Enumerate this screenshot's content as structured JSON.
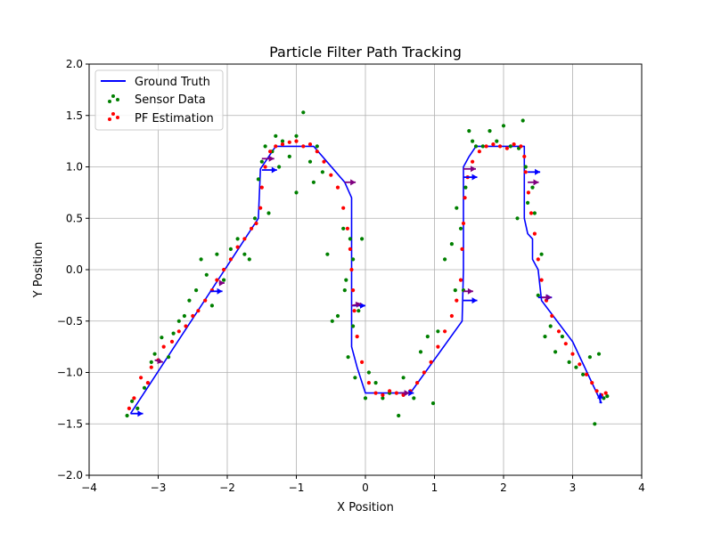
{
  "chart_data": {
    "type": "line",
    "title": "Particle Filter Path Tracking",
    "xlabel": "X Position",
    "ylabel": "Y Position",
    "xlim": [
      -4,
      4
    ],
    "ylim": [
      -2,
      2
    ],
    "xticks": [
      -4,
      -3,
      -2,
      -1,
      0,
      1,
      2,
      3,
      4
    ],
    "yticks": [
      -2.0,
      -1.5,
      -1.0,
      -0.5,
      0.0,
      0.5,
      1.0,
      1.5,
      2.0
    ],
    "xtick_labels": [
      "−4",
      "−3",
      "−2",
      "−1",
      "0",
      "1",
      "2",
      "3",
      "4"
    ],
    "ytick_labels": [
      "−2.0",
      "−1.5",
      "−1.0",
      "−0.5",
      "0.0",
      "0.5",
      "1.0",
      "1.5",
      "2.0"
    ],
    "grid": true,
    "legend_position": "top-left",
    "legend": [
      "Ground Truth",
      "Sensor Data",
      "PF Estimation"
    ],
    "colors": {
      "ground_truth": "#0000ff",
      "sensor": "#008000",
      "estimation": "#ff0000",
      "heading_blue": "#0000ff",
      "heading_purple": "#800080",
      "grid": "#b0b0b0"
    },
    "ground_truth": {
      "x": [
        -3.4,
        -1.55,
        -1.52,
        -1.3,
        -0.75,
        -0.3,
        -0.2,
        -0.2,
        -0.2,
        -0.12,
        0.0,
        0.65,
        1.4,
        1.42,
        1.42,
        1.5,
        1.6,
        2.3,
        2.3,
        2.3,
        2.35,
        2.42,
        2.42,
        2.5,
        2.55,
        3.0,
        3.42
      ],
      "y": [
        -1.4,
        0.5,
        0.98,
        1.2,
        1.2,
        0.85,
        0.7,
        0.0,
        -0.75,
        -0.95,
        -1.2,
        -1.2,
        -0.5,
        0.0,
        1.0,
        1.1,
        1.2,
        1.2,
        1.1,
        0.5,
        0.35,
        0.3,
        0.1,
        0.0,
        -0.3,
        -0.7,
        -1.3
      ]
    },
    "sensor_data": {
      "x": [
        -3.45,
        -3.38,
        -3.3,
        -3.2,
        -3.1,
        -3.05,
        -2.95,
        -2.85,
        -2.78,
        -2.7,
        -2.62,
        -2.55,
        -2.45,
        -2.38,
        -2.3,
        -2.22,
        -2.15,
        -2.05,
        -1.95,
        -1.85,
        -1.75,
        -1.68,
        -1.6,
        -1.55,
        -1.5,
        -1.45,
        -1.4,
        -1.35,
        -1.3,
        -1.25,
        -1.2,
        -1.1,
        -1.0,
        -0.9,
        -0.8,
        -0.7,
        -0.62,
        -0.55,
        -0.48,
        -0.4,
        -0.32,
        -0.28,
        -0.25,
        -0.22,
        -0.18,
        -0.15,
        -0.1,
        -0.05,
        0.0,
        0.05,
        0.15,
        0.25,
        0.35,
        0.48,
        0.55,
        0.7,
        0.8,
        0.9,
        0.98,
        1.05,
        1.15,
        1.25,
        1.32,
        1.38,
        1.42,
        1.45,
        1.5,
        1.55,
        1.6,
        1.7,
        1.8,
        1.9,
        2.0,
        2.1,
        2.2,
        2.28,
        2.32,
        2.35,
        2.42,
        2.45,
        2.5,
        2.55,
        2.6,
        2.68,
        2.75,
        2.85,
        2.95,
        3.05,
        3.15,
        3.25,
        3.32,
        3.38,
        3.45,
        3.5,
        2.22,
        1.3,
        -1.0,
        -0.75,
        -0.3,
        -0.18
      ],
      "y": [
        -1.42,
        -1.28,
        -1.35,
        -1.15,
        -0.9,
        -0.82,
        -0.66,
        -0.85,
        -0.62,
        -0.5,
        -0.45,
        -0.3,
        -0.2,
        0.1,
        -0.05,
        -0.35,
        0.15,
        -0.1,
        0.2,
        0.3,
        0.15,
        0.1,
        0.5,
        0.88,
        1.05,
        1.2,
        0.55,
        1.15,
        1.3,
        1.0,
        1.25,
        1.1,
        1.3,
        1.53,
        1.05,
        1.2,
        0.95,
        0.15,
        -0.5,
        -0.45,
        0.4,
        -0.1,
        -0.85,
        0.3,
        -0.55,
        -1.05,
        -0.4,
        0.3,
        -1.25,
        -1.0,
        -1.1,
        -1.25,
        -1.2,
        -1.42,
        -1.05,
        -1.25,
        -0.8,
        -0.65,
        -1.3,
        -0.6,
        0.1,
        0.25,
        0.6,
        0.4,
        -0.2,
        0.8,
        1.35,
        1.25,
        1.2,
        1.2,
        1.35,
        1.25,
        1.4,
        1.2,
        0.5,
        1.45,
        1.0,
        0.65,
        0.8,
        0.55,
        -0.25,
        0.15,
        -0.65,
        -0.55,
        -0.8,
        -0.65,
        -0.9,
        -0.95,
        -1.02,
        -0.85,
        -1.5,
        -0.82,
        -1.25,
        -1.23,
        1.18,
        -0.2,
        0.75,
        0.85,
        -0.2,
        0.1
      ]
    },
    "pf_estimation": {
      "x": [
        -3.42,
        -3.35,
        -3.25,
        -3.15,
        -3.1,
        -3.0,
        -2.92,
        -2.8,
        -2.7,
        -2.6,
        -2.5,
        -2.42,
        -2.32,
        -2.22,
        -2.15,
        -2.05,
        -1.95,
        -1.85,
        -1.75,
        -1.65,
        -1.58,
        -1.52,
        -1.5,
        -1.45,
        -1.38,
        -1.3,
        -1.2,
        -1.1,
        -1.0,
        -0.9,
        -0.8,
        -0.7,
        -0.6,
        -0.5,
        -0.4,
        -0.32,
        -0.26,
        -0.22,
        -0.2,
        -0.18,
        -0.16,
        -0.12,
        -0.05,
        0.05,
        0.15,
        0.25,
        0.35,
        0.45,
        0.55,
        0.65,
        0.75,
        0.85,
        0.95,
        1.05,
        1.15,
        1.25,
        1.32,
        1.38,
        1.4,
        1.42,
        1.44,
        1.48,
        1.55,
        1.65,
        1.75,
        1.85,
        1.95,
        2.05,
        2.15,
        2.25,
        2.3,
        2.32,
        2.36,
        2.4,
        2.45,
        2.5,
        2.55,
        2.62,
        2.7,
        2.8,
        2.9,
        3.0,
        3.1,
        3.2,
        3.28,
        3.35,
        3.42,
        3.48
      ],
      "y": [
        -1.35,
        -1.25,
        -1.05,
        -1.1,
        -0.95,
        -0.88,
        -0.75,
        -0.7,
        -0.6,
        -0.55,
        -0.45,
        -0.4,
        -0.3,
        -0.2,
        -0.1,
        0.0,
        0.1,
        0.22,
        0.3,
        0.4,
        0.45,
        0.6,
        0.8,
        1.0,
        1.15,
        1.2,
        1.22,
        1.24,
        1.25,
        1.2,
        1.22,
        1.15,
        1.05,
        0.92,
        0.8,
        0.6,
        0.4,
        0.2,
        0.0,
        -0.2,
        -0.4,
        -0.65,
        -0.9,
        -1.1,
        -1.2,
        -1.22,
        -1.18,
        -1.2,
        -1.22,
        -1.18,
        -1.1,
        -1.0,
        -0.9,
        -0.75,
        -0.6,
        -0.45,
        -0.3,
        -0.1,
        0.2,
        0.45,
        0.7,
        0.9,
        1.05,
        1.15,
        1.2,
        1.22,
        1.2,
        1.18,
        1.22,
        1.2,
        1.1,
        0.95,
        0.75,
        0.55,
        0.35,
        0.1,
        -0.1,
        -0.3,
        -0.45,
        -0.6,
        -0.72,
        -0.82,
        -0.92,
        -1.02,
        -1.1,
        -1.18,
        -1.22,
        -1.2
      ]
    },
    "heading_arrows": [
      {
        "x": -3.4,
        "y": -1.4,
        "dx": 0.18,
        "dy": 0.0,
        "color": "blue"
      },
      {
        "x": -3.05,
        "y": -0.88,
        "dx": 0.12,
        "dy": -0.02,
        "color": "purple"
      },
      {
        "x": -2.25,
        "y": -0.21,
        "dx": 0.18,
        "dy": 0.0,
        "color": "blue"
      },
      {
        "x": -2.12,
        "y": -0.13,
        "dx": 0.08,
        "dy": 0.0,
        "color": "purple"
      },
      {
        "x": -1.5,
        "y": 0.97,
        "dx": 0.22,
        "dy": 0.0,
        "color": "blue"
      },
      {
        "x": -1.5,
        "y": 1.08,
        "dx": 0.18,
        "dy": 0.0,
        "color": "purple"
      },
      {
        "x": -0.3,
        "y": 0.85,
        "dx": 0.16,
        "dy": 0.0,
        "color": "purple"
      },
      {
        "x": -0.2,
        "y": -0.35,
        "dx": 0.2,
        "dy": 0.0,
        "color": "blue"
      },
      {
        "x": -0.2,
        "y": -0.35,
        "dx": 0.14,
        "dy": 0.02,
        "color": "purple"
      },
      {
        "x": 0.5,
        "y": -1.2,
        "dx": 0.2,
        "dy": 0.0,
        "color": "blue"
      },
      {
        "x": 0.5,
        "y": -1.2,
        "dx": 0.14,
        "dy": 0.0,
        "color": "purple"
      },
      {
        "x": 1.42,
        "y": 0.9,
        "dx": 0.2,
        "dy": 0.0,
        "color": "blue"
      },
      {
        "x": 1.42,
        "y": 0.98,
        "dx": 0.18,
        "dy": 0.0,
        "color": "purple"
      },
      {
        "x": 1.42,
        "y": -0.3,
        "dx": 0.2,
        "dy": 0.0,
        "color": "blue"
      },
      {
        "x": 1.42,
        "y": -0.21,
        "dx": 0.14,
        "dy": 0.0,
        "color": "purple"
      },
      {
        "x": 2.35,
        "y": 0.95,
        "dx": 0.18,
        "dy": 0.0,
        "color": "blue"
      },
      {
        "x": 2.35,
        "y": 0.85,
        "dx": 0.16,
        "dy": 0.0,
        "color": "purple"
      },
      {
        "x": 2.5,
        "y": -0.27,
        "dx": 0.2,
        "dy": 0.0,
        "color": "blue"
      },
      {
        "x": 2.55,
        "y": -0.27,
        "dx": 0.14,
        "dy": 0.0,
        "color": "purple"
      },
      {
        "x": 3.4,
        "y": -1.3,
        "dx": 0.0,
        "dy": 0.1,
        "color": "blue"
      }
    ]
  }
}
